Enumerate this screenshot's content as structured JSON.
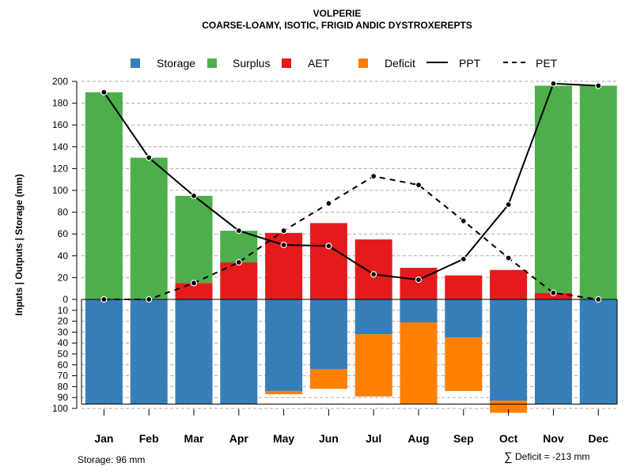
{
  "chart_data": {
    "type": "bar",
    "title": "VOLPERIE",
    "subtitle": "COARSE-LOAMY, ISOTIC, FRIGID ANDIC DYSTROXEREPTS",
    "ylabel": "Inputs | Outputs | Storage    (mm)",
    "categories": [
      "Jan",
      "Feb",
      "Mar",
      "Apr",
      "May",
      "Jun",
      "Jul",
      "Aug",
      "Sep",
      "Oct",
      "Nov",
      "Dec"
    ],
    "ylim_upper": [
      0,
      200
    ],
    "ylim_lower": [
      0,
      100
    ],
    "yticks_upper": [
      "0",
      "20",
      "40",
      "60",
      "80",
      "100",
      "120",
      "140",
      "160",
      "180",
      "200"
    ],
    "yticks_lower": [
      "10",
      "20",
      "30",
      "40",
      "50",
      "60",
      "70",
      "80",
      "90",
      "100"
    ],
    "legend": {
      "storage": "Storage",
      "surplus": "Surplus",
      "aet": "AET",
      "deficit": "Deficit",
      "ppt": "PPT",
      "pet": "PET"
    },
    "colors": {
      "storage": "#377EB8",
      "surplus": "#4DAF4A",
      "aet": "#E41A1C",
      "deficit": "#FF7F00",
      "lines": "#000000"
    },
    "series": [
      {
        "name": "AET",
        "values": [
          0,
          0,
          15,
          34,
          61,
          70,
          55,
          29,
          22,
          27,
          6,
          0
        ]
      },
      {
        "name": "Surplus",
        "values": [
          190,
          130,
          80,
          29,
          0,
          0,
          0,
          0,
          0,
          0,
          190,
          196
        ]
      },
      {
        "name": "Storage",
        "values": [
          96,
          96,
          96,
          96,
          84,
          64,
          32,
          21,
          35,
          93,
          96,
          96
        ]
      },
      {
        "name": "Deficit",
        "values": [
          0,
          0,
          0,
          0,
          3,
          18,
          57,
          75,
          49,
          11,
          0,
          0
        ]
      },
      {
        "name": "PPT",
        "values": [
          190,
          130,
          95,
          63,
          50,
          49,
          23,
          18,
          37,
          87,
          198,
          196
        ]
      },
      {
        "name": "PET",
        "values": [
          0,
          0,
          15,
          34,
          63,
          88,
          113,
          105,
          72,
          38,
          6,
          0
        ]
      }
    ],
    "storage_capacity": 96
  },
  "footer": {
    "storage": "Storage: 96 mm",
    "deficit_sigma": "∑",
    "deficit": "Deficit = -213 mm"
  }
}
